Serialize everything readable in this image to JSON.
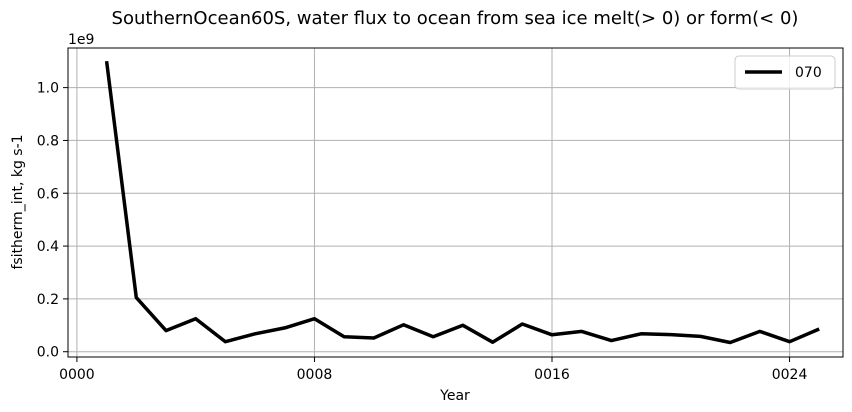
{
  "chart_data": {
    "type": "line",
    "title": "SouthernOcean60S, water flux to ocean from sea ice melt(> 0) or form(< 0)",
    "xlabel": "Year",
    "ylabel": "fsitherm_int, kg s-1",
    "y_offset_label": "1e9",
    "xlim": [
      -0.3,
      25.8
    ],
    "ylim": [
      -0.02,
      1.15
    ],
    "x_ticks": [
      0,
      8,
      16,
      24
    ],
    "x_tick_labels": [
      "0000",
      "0008",
      "0016",
      "0024"
    ],
    "y_ticks": [
      0.0,
      0.2,
      0.4,
      0.6,
      0.8,
      1.0
    ],
    "y_tick_labels": [
      "0.0",
      "0.2",
      "0.4",
      "0.6",
      "0.8",
      "1.0"
    ],
    "grid": true,
    "legend_position": "top-right",
    "series": [
      {
        "name": "070",
        "color": "#000000",
        "x": [
          1,
          2,
          3,
          4,
          5,
          6,
          7,
          8,
          9,
          10,
          11,
          12,
          13,
          14,
          15,
          16,
          17,
          18,
          19,
          20,
          21,
          22,
          23,
          24,
          25
        ],
        "values": [
          1.1,
          0.205,
          0.08,
          0.125,
          0.038,
          0.068,
          0.09,
          0.125,
          0.057,
          0.052,
          0.102,
          0.057,
          0.1,
          0.036,
          0.105,
          0.064,
          0.077,
          0.042,
          0.068,
          0.065,
          0.058,
          0.035,
          0.077,
          0.038,
          0.086
        ]
      }
    ]
  }
}
